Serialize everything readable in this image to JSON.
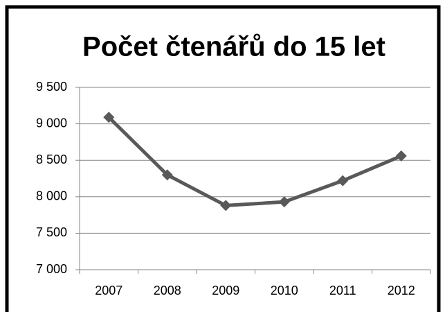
{
  "chart_data": {
    "type": "line",
    "title": "Počet čtenářů do 15 let",
    "categories": [
      "2007",
      "2008",
      "2009",
      "2010",
      "2011",
      "2012"
    ],
    "series": [
      {
        "name": "Počet čtenářů do 15 let",
        "color": "#595959",
        "values": [
          9090,
          8300,
          7880,
          7930,
          8220,
          8560
        ]
      }
    ],
    "ylim": [
      7000,
      9500
    ],
    "yticks": [
      {
        "value": 7000,
        "label": "7 000"
      },
      {
        "value": 7500,
        "label": "7 500"
      },
      {
        "value": 8000,
        "label": "8 000"
      },
      {
        "value": 8500,
        "label": "8 500"
      },
      {
        "value": 9000,
        "label": "9 000"
      },
      {
        "value": 9500,
        "label": "9 500"
      }
    ],
    "grid": true,
    "legend": false
  }
}
